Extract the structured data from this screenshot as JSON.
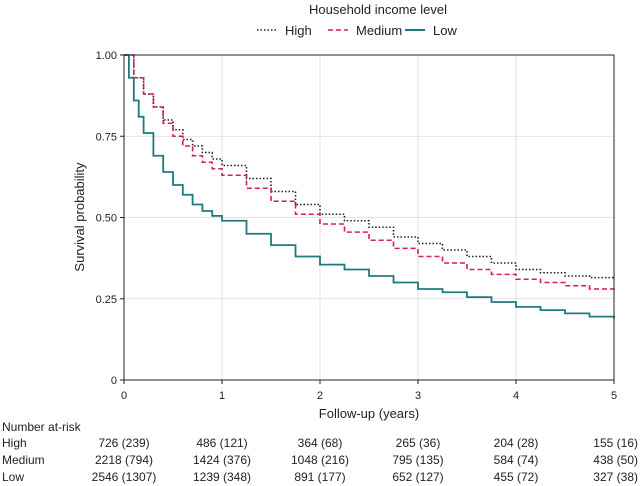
{
  "chart_data": {
    "type": "line",
    "subtype": "kaplan-meier",
    "legend_title": "Household income level",
    "legend_position": "top",
    "xlabel": "Follow-up (years)",
    "ylabel": "Survival probability",
    "xlim": [
      0,
      5
    ],
    "ylim": [
      0,
      1
    ],
    "xticks": [
      0,
      1,
      2,
      3,
      4,
      5
    ],
    "yticks": [
      0,
      0.25,
      0.5,
      0.75,
      1.0
    ],
    "ytick_labels": [
      "0",
      "0.25",
      "0.50",
      "0.75",
      "1.00"
    ],
    "grid": true,
    "series": [
      {
        "name": "High",
        "color": "#222222",
        "dash": "dotted",
        "x": [
          0,
          0.1,
          0.2,
          0.3,
          0.4,
          0.5,
          0.6,
          0.7,
          0.8,
          0.9,
          1.0,
          1.25,
          1.5,
          1.75,
          2.0,
          2.25,
          2.5,
          2.75,
          3.0,
          3.25,
          3.5,
          3.75,
          4.0,
          4.25,
          4.5,
          4.75,
          5.0
        ],
        "y": [
          1.0,
          0.93,
          0.88,
          0.84,
          0.8,
          0.77,
          0.74,
          0.72,
          0.7,
          0.68,
          0.66,
          0.62,
          0.58,
          0.54,
          0.51,
          0.49,
          0.47,
          0.44,
          0.42,
          0.4,
          0.38,
          0.36,
          0.34,
          0.33,
          0.32,
          0.315,
          0.31
        ]
      },
      {
        "name": "Medium",
        "color": "#d81b60",
        "dash": "dashed",
        "x": [
          0,
          0.1,
          0.2,
          0.3,
          0.4,
          0.5,
          0.6,
          0.7,
          0.8,
          0.9,
          1.0,
          1.25,
          1.5,
          1.75,
          2.0,
          2.25,
          2.5,
          2.75,
          3.0,
          3.25,
          3.5,
          3.75,
          4.0,
          4.25,
          4.5,
          4.75,
          5.0
        ],
        "y": [
          1.0,
          0.93,
          0.88,
          0.84,
          0.79,
          0.75,
          0.72,
          0.69,
          0.67,
          0.65,
          0.63,
          0.59,
          0.55,
          0.51,
          0.48,
          0.455,
          0.43,
          0.405,
          0.38,
          0.36,
          0.34,
          0.325,
          0.31,
          0.3,
          0.29,
          0.28,
          0.27
        ]
      },
      {
        "name": "Low",
        "color": "#1f7a80",
        "dash": "solid",
        "x": [
          0,
          0.05,
          0.1,
          0.15,
          0.2,
          0.3,
          0.4,
          0.5,
          0.6,
          0.7,
          0.8,
          0.9,
          1.0,
          1.25,
          1.5,
          1.75,
          2.0,
          2.25,
          2.5,
          2.75,
          3.0,
          3.25,
          3.5,
          3.75,
          4.0,
          4.25,
          4.5,
          4.75,
          5.0
        ],
        "y": [
          1.0,
          0.93,
          0.86,
          0.81,
          0.76,
          0.69,
          0.64,
          0.6,
          0.57,
          0.54,
          0.52,
          0.505,
          0.49,
          0.45,
          0.415,
          0.38,
          0.355,
          0.34,
          0.32,
          0.3,
          0.28,
          0.27,
          0.255,
          0.24,
          0.225,
          0.215,
          0.205,
          0.195,
          0.19
        ]
      }
    ],
    "risk_table": {
      "title": "Number at-risk",
      "times": [
        0,
        1,
        2,
        3,
        4,
        5
      ],
      "rows": [
        {
          "group": "High",
          "values": [
            "726 (239)",
            "486 (121)",
            "364 (68)",
            "265 (36)",
            "204 (28)",
            "155 (16)"
          ]
        },
        {
          "group": "Medium",
          "values": [
            "2218 (794)",
            "1424 (376)",
            "1048 (216)",
            "795 (135)",
            "584 (74)",
            "438 (50)"
          ]
        },
        {
          "group": "Low",
          "values": [
            "2546 (1307)",
            "1239 (348)",
            "891 (177)",
            "652 (127)",
            "455 (72)",
            "327 (38)"
          ]
        }
      ]
    }
  }
}
